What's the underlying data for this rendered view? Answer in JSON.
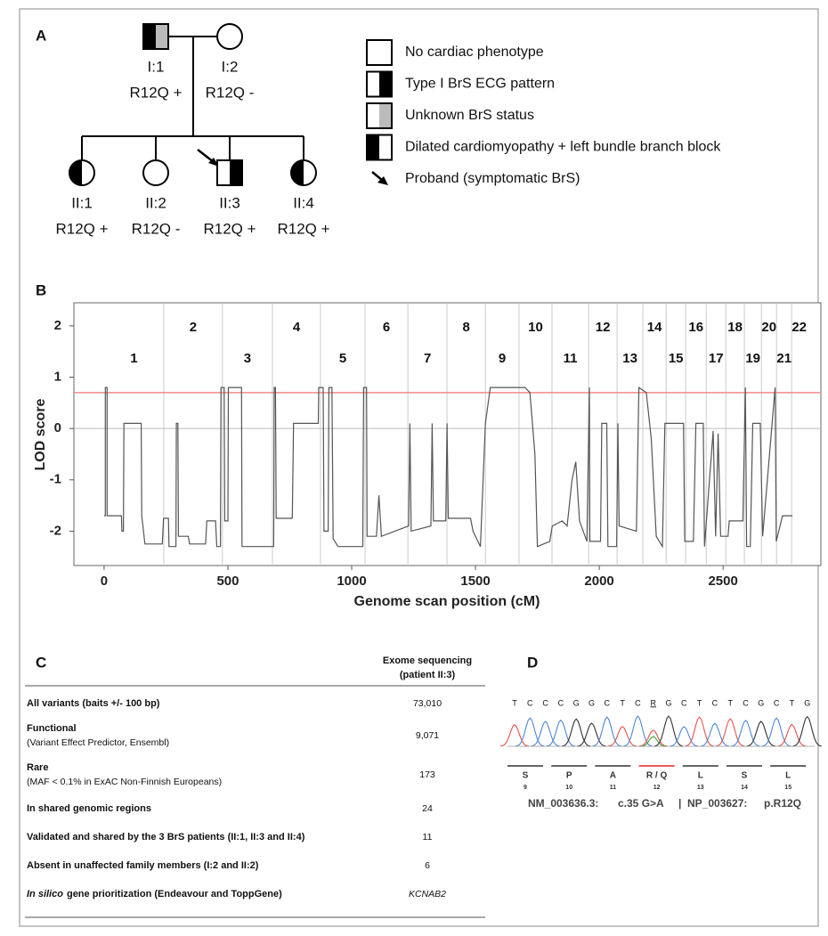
{
  "panel_labels": [
    "A",
    "B",
    "C",
    "D"
  ],
  "pedigree": {
    "individuals": [
      {
        "id": "I:1",
        "genotype": "R12Q +",
        "color": "#e8212a"
      },
      {
        "id": "I:2",
        "genotype": "R12Q -",
        "color": "#111111"
      },
      {
        "id": "II:1",
        "genotype": "R12Q +",
        "color": "#e8212a"
      },
      {
        "id": "II:2",
        "genotype": "R12Q -",
        "color": "#111111"
      },
      {
        "id": "II:3",
        "genotype": "R12Q +",
        "color": "#e8212a"
      },
      {
        "id": "II:4",
        "genotype": "R12Q +",
        "color": "#e8212a"
      }
    ],
    "legend": [
      "No cardiac phenotype",
      "Type I BrS ECG pattern",
      "Unknown BrS status",
      "Dilated cardiomyopathy + left bundle branch block",
      "Proband (symptomatic BrS)"
    ]
  },
  "chart_data": {
    "type": "line",
    "xlabel": "Genome scan position (cM)",
    "ylabel": "LOD score",
    "color": "#555555",
    "x": [
      0,
      5,
      5,
      12,
      12,
      70,
      72,
      78,
      80,
      150,
      152,
      165,
      235,
      240,
      260,
      262,
      290,
      292,
      298,
      300,
      340,
      345,
      410,
      415,
      450,
      455,
      470,
      472,
      485,
      487,
      500,
      502,
      555,
      557,
      685,
      687,
      692,
      695,
      760,
      765,
      865,
      867,
      885,
      888,
      905,
      908,
      920,
      925,
      945,
      1045,
      1048,
      1060,
      1062,
      1100,
      1110,
      1120,
      1230,
      1235,
      1240,
      1320,
      1325,
      1330,
      1380,
      1385,
      1390,
      1480,
      1490,
      1520,
      1540,
      1560,
      1700,
      1720,
      1740,
      1750,
      1800,
      1810,
      1850,
      1870,
      1890,
      1905,
      1920,
      1950,
      1960,
      1962,
      2005,
      2010,
      2030,
      2035,
      2070,
      2075,
      2080,
      2150,
      2160,
      2190,
      2210,
      2230,
      2255,
      2265,
      2340,
      2345,
      2380,
      2390,
      2420,
      2425,
      2460,
      2470,
      2480,
      2490,
      2520,
      2525,
      2580,
      2590,
      2595,
      2610,
      2620,
      2650,
      2660,
      2710,
      2715,
      2740,
      2780
    ],
    "values": [
      -1.7,
      -1.7,
      0.8,
      0.8,
      -1.7,
      -1.7,
      -2.0,
      -2.0,
      0.1,
      0.1,
      -1.7,
      -2.25,
      -2.25,
      -1.75,
      -1.75,
      -2.3,
      -2.3,
      0.1,
      0.1,
      -2.1,
      -2.1,
      -2.25,
      -2.25,
      -1.8,
      -1.8,
      -2.3,
      -2.3,
      0.8,
      0.8,
      -1.8,
      -1.8,
      0.8,
      0.8,
      -2.3,
      -2.3,
      0.8,
      0.8,
      -1.75,
      -1.75,
      0.1,
      0.1,
      0.8,
      0.8,
      -2.0,
      -2.0,
      0.8,
      0.8,
      -2.15,
      -2.3,
      -2.3,
      0.8,
      0.8,
      -2.1,
      -2.1,
      -1.3,
      -2.1,
      -1.9,
      0.1,
      -2.0,
      -1.9,
      0.1,
      -1.8,
      -1.8,
      0.1,
      -1.75,
      -1.75,
      -2.0,
      -2.3,
      0.1,
      0.8,
      0.8,
      0.7,
      -0.5,
      -2.3,
      -2.2,
      -1.9,
      -1.8,
      -1.9,
      -1.0,
      -0.65,
      -1.8,
      -2.2,
      0.8,
      -2.2,
      -2.2,
      0.1,
      0.1,
      -2.3,
      -2.3,
      0.1,
      -1.9,
      -2.0,
      0.8,
      0.7,
      -0.2,
      -2.1,
      -2.3,
      0.1,
      0.1,
      -2.2,
      -2.2,
      0.1,
      0.1,
      -2.3,
      -0.05,
      -2.1,
      -0.1,
      -2.1,
      -2.1,
      -1.8,
      -1.8,
      0.8,
      -2.3,
      -2.3,
      0.1,
      0.1,
      -2.1,
      0.8,
      -2.2,
      -1.7,
      -1.7
    ],
    "xlim": [
      -122,
      2895
    ],
    "ylim": [
      -2.67,
      2.45
    ],
    "xticks": [
      0,
      500,
      1000,
      1500,
      2000,
      2500
    ],
    "yticks": [
      -2,
      -1,
      0,
      1,
      2
    ],
    "threshold": 0.7,
    "threshold_color": "#f08a8a",
    "chromosomes": [
      "1",
      "2",
      "3",
      "4",
      "5",
      "6",
      "7",
      "8",
      "9",
      "10",
      "11",
      "12",
      "13",
      "14",
      "15",
      "16",
      "17",
      "18",
      "19",
      "20",
      "21",
      "22"
    ],
    "chromosome_boundaries": [
      241,
      478,
      680,
      874,
      1054,
      1227,
      1385,
      1540,
      1676,
      1809,
      1957,
      2072,
      2176,
      2270,
      2349,
      2432,
      2511,
      2586,
      2655,
      2716,
      2777
    ],
    "odd_color": "#e8212a",
    "even_color": "#27b3e0"
  },
  "table": {
    "header": [
      "Exome sequencing",
      "(patient II:3)"
    ],
    "rows": [
      {
        "label": "All variants (baits +/- 100 bp)",
        "value": "73,010"
      },
      {
        "label": "Functional",
        "sub": "(Variant Effect Predictor, Ensembl)",
        "value": "9,071"
      },
      {
        "label": "Rare",
        "sub": "(MAF < 0.1% in ExAC Non-Finnish Europeans)",
        "value": "173"
      },
      {
        "label": "In shared genomic regions",
        "value": "24"
      },
      {
        "label": "Validated and shared by the 3 BrS patients (II:1, II:3 and II:4)",
        "value": "11"
      },
      {
        "label": "Absent in unaffected family members (I:2 and II:2)",
        "value": "6"
      },
      {
        "label_italic": "In silico",
        "label": "gene prioritization (Endeavour and ToppGene)",
        "value": "KCNAB2"
      }
    ]
  },
  "sequence": {
    "bases": [
      "T",
      "C",
      "C",
      "C",
      "G",
      "G",
      "C",
      "T",
      "C",
      "R",
      "G",
      "C",
      "T",
      "C",
      "T",
      "C",
      "G",
      "C",
      "T",
      "G"
    ],
    "codons": [
      {
        "aa": "S",
        "pos": "9"
      },
      {
        "aa": "P",
        "pos": "10"
      },
      {
        "aa": "A",
        "pos": "11"
      },
      {
        "aa": "R / Q",
        "pos": "12"
      },
      {
        "aa": "L",
        "pos": "13"
      },
      {
        "aa": "S",
        "pos": "14"
      },
      {
        "aa": "L",
        "pos": "15"
      }
    ],
    "caption": [
      "NM_003636.3:",
      "c.35 G>A",
      "|",
      "NP_003627:",
      "p.R12Q"
    ]
  }
}
